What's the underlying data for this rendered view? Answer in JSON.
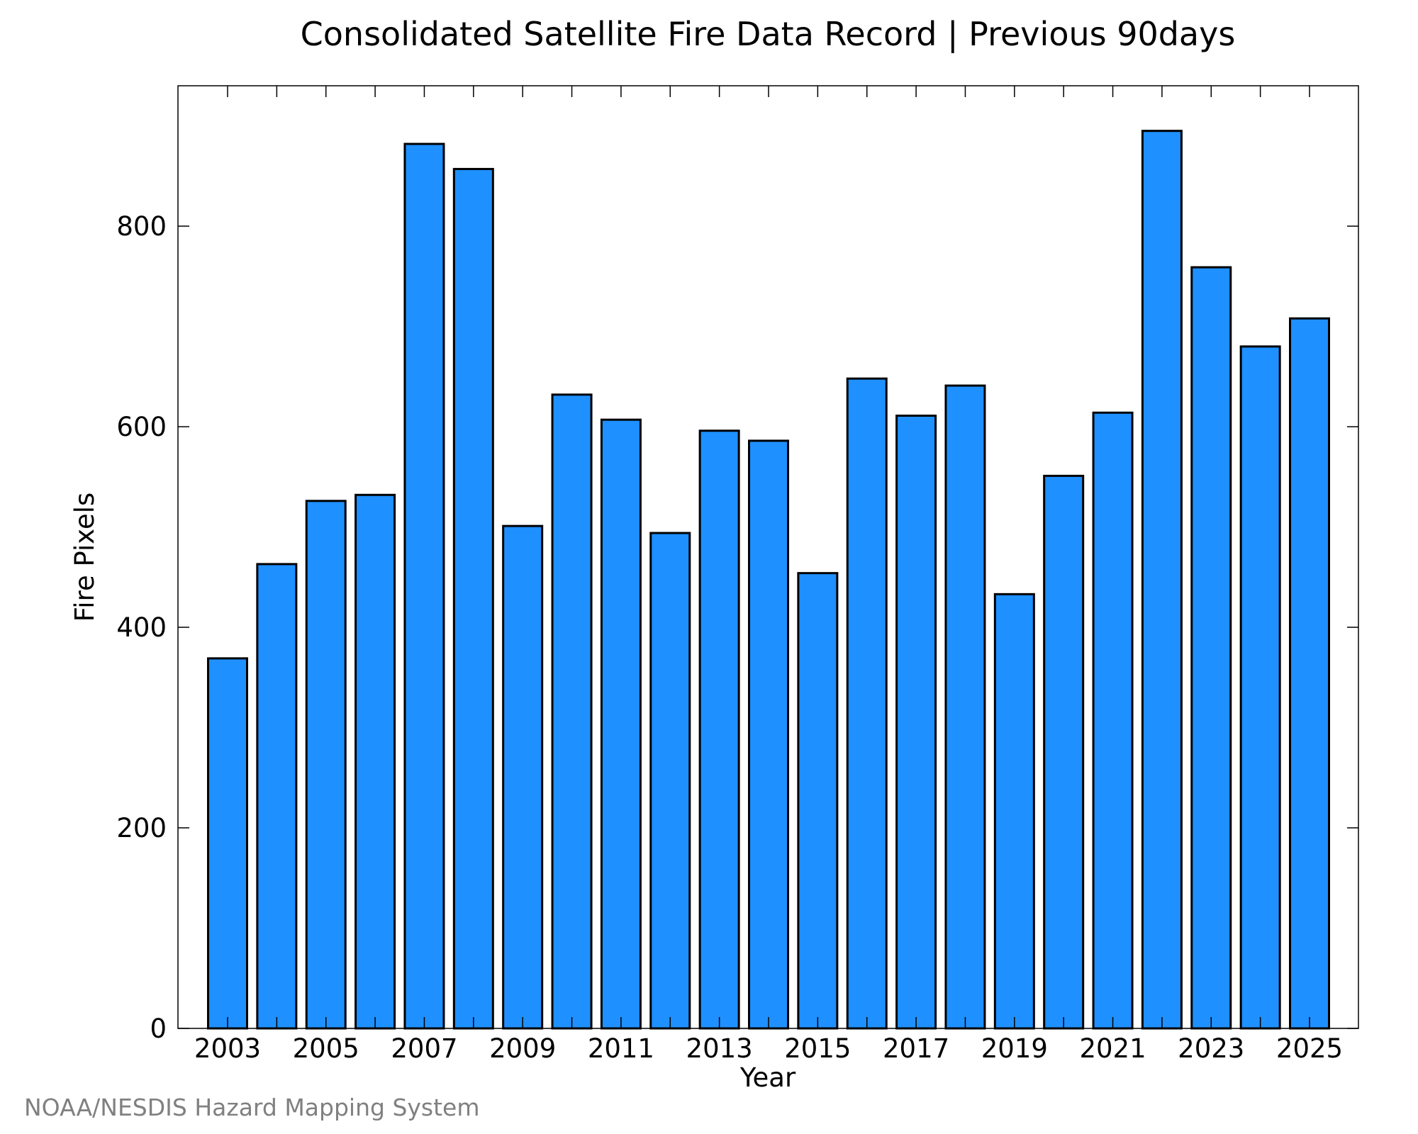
{
  "chart_data": {
    "type": "bar",
    "title": "Consolidated Satellite Fire Data Record | Previous 90days",
    "xlabel": "Year",
    "ylabel": "Fire Pixels",
    "categories": [
      "2003",
      "2004",
      "2005",
      "2006",
      "2007",
      "2008",
      "2009",
      "2010",
      "2011",
      "2012",
      "2013",
      "2014",
      "2015",
      "2016",
      "2017",
      "2018",
      "2019",
      "2020",
      "2021",
      "2022",
      "2023",
      "2024",
      "2025"
    ],
    "values": [
      369,
      463,
      526,
      532,
      882,
      857,
      501,
      632,
      607,
      494,
      596,
      586,
      454,
      648,
      611,
      641,
      433,
      551,
      614,
      895,
      759,
      680,
      708
    ],
    "x_tick_labels": [
      "2003",
      "2005",
      "2007",
      "2009",
      "2011",
      "2013",
      "2015",
      "2017",
      "2019",
      "2021",
      "2023",
      "2025"
    ],
    "y_ticks": [
      0,
      200,
      400,
      600,
      800
    ],
    "ylim": [
      0,
      940
    ],
    "grid": false,
    "legend": "none",
    "bar_color": "#1e90ff",
    "edge_color": "#000000"
  },
  "footer": {
    "credit": "NOAA/NESDIS Hazard Mapping System"
  }
}
